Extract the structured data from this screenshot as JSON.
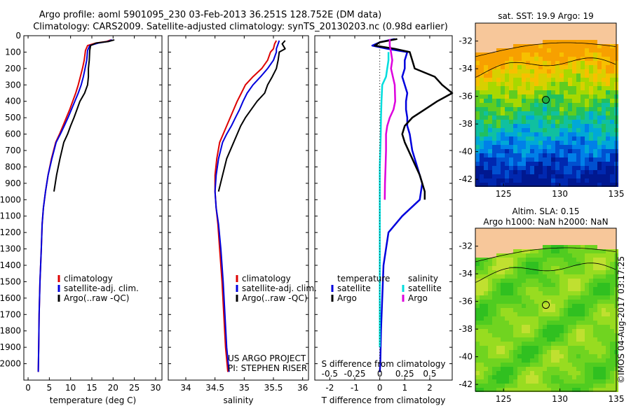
{
  "title": {
    "line1": "Argo profile: aoml 5901095_230 03-Feb-2013 36.251S 128.752E (DM data)",
    "line2": "Climatology: CARS2009. Satellite-adjusted climatology: synTS_20130203.nc (0.98d earlier)"
  },
  "colors": {
    "climatology": "#dd0000",
    "satellite": "#0000dd",
    "argo": "#000000",
    "salinity_satellite": "#00dddd",
    "salinity_argo": "#dd00dd",
    "land": "#f7c79a"
  },
  "credit": {
    "project": "US ARGO PROJECT",
    "pi": "PI: STEPHEN RISER"
  },
  "watermark": "©IMOS 04-Aug-2017 03:17:25",
  "chart_data": [
    {
      "id": "temperature",
      "type": "line",
      "xlabel": "temperature (deg C)",
      "ylabel": "",
      "xlim": [
        -1,
        31.5
      ],
      "ylim": [
        0,
        2100
      ],
      "y_reversed": true,
      "xticks": [
        0,
        5,
        10,
        15,
        20,
        25,
        30
      ],
      "yticks": [
        0,
        100,
        200,
        300,
        400,
        500,
        600,
        700,
        800,
        900,
        1000,
        1100,
        1200,
        1300,
        1400,
        1500,
        1600,
        1700,
        1800,
        1900,
        2000
      ],
      "legend": {
        "position": "bottom-left",
        "entries": [
          "climatology",
          "satellite-adj. clim.",
          "Argo(..raw -QC)"
        ]
      },
      "series": [
        {
          "name": "climatology",
          "color": "#dd0000",
          "x": [
            19.5,
            18.5,
            16,
            14,
            13.5,
            13.2,
            12.8,
            12.3,
            11.8,
            11.2,
            10.5,
            9.8,
            9,
            8.2,
            7.4,
            6.5,
            5.5,
            4.7,
            4.1,
            3.6,
            3.3,
            3.1,
            2.8,
            2.6,
            2.5,
            2.4
          ],
          "y": [
            25,
            35,
            45,
            60,
            90,
            150,
            200,
            250,
            300,
            350,
            400,
            450,
            500,
            550,
            600,
            650,
            750,
            850,
            950,
            1050,
            1150,
            1300,
            1500,
            1700,
            1900,
            2050
          ]
        },
        {
          "name": "satellite-adj. clim.",
          "color": "#0000dd",
          "x": [
            19.8,
            18.8,
            16.5,
            14.5,
            14,
            13.8,
            13.4,
            13,
            12.5,
            11.8,
            11,
            10.2,
            9.4,
            8.5,
            7.6,
            6.6,
            5.6,
            4.7,
            4.1,
            3.6,
            3.3,
            3.1,
            2.8,
            2.6,
            2.5,
            2.4
          ],
          "y": [
            25,
            35,
            45,
            60,
            90,
            150,
            200,
            250,
            300,
            350,
            400,
            450,
            500,
            550,
            600,
            650,
            750,
            850,
            950,
            1050,
            1150,
            1300,
            1500,
            1700,
            1900,
            2050
          ]
        },
        {
          "name": "Argo(..raw -QC)",
          "color": "#000000",
          "x": [
            20.3,
            19,
            16,
            14.7,
            14.5,
            14.4,
            14.2,
            14.2,
            14,
            13.3,
            12.2,
            11.5,
            10.8,
            10,
            9.3,
            8.4,
            7.5,
            6.7,
            6.1
          ],
          "y": [
            25,
            35,
            45,
            60,
            90,
            150,
            200,
            250,
            300,
            350,
            400,
            450,
            500,
            550,
            600,
            650,
            750,
            850,
            950
          ]
        }
      ]
    },
    {
      "id": "salinity",
      "type": "line",
      "xlabel": "salinity",
      "ylabel": "",
      "xlim": [
        33.7,
        36.1
      ],
      "ylim": [
        0,
        2100
      ],
      "y_reversed": true,
      "xticks": [
        34,
        34.5,
        35,
        35.5,
        36
      ],
      "legend": {
        "position": "bottom-right",
        "entries": [
          "climatology",
          "satellite-adj. clim.",
          "Argo(..raw -QC)"
        ]
      },
      "series": [
        {
          "name": "climatology",
          "color": "#dd0000",
          "x": [
            35.55,
            35.52,
            35.5,
            35.45,
            35.4,
            35.3,
            35.15,
            35.02,
            34.95,
            34.88,
            34.82,
            34.76,
            34.7,
            34.64,
            34.58,
            34.53,
            34.5,
            34.5,
            34.52,
            34.55,
            34.58,
            34.62,
            34.65,
            34.68,
            34.72
          ],
          "y": [
            30,
            50,
            80,
            100,
            150,
            200,
            250,
            300,
            350,
            400,
            450,
            500,
            550,
            600,
            650,
            750,
            850,
            950,
            1050,
            1150,
            1300,
            1500,
            1700,
            1900,
            2050
          ]
        },
        {
          "name": "satellite-adj. clim.",
          "color": "#0000dd",
          "x": [
            35.6,
            35.58,
            35.55,
            35.55,
            35.5,
            35.4,
            35.28,
            35.15,
            35.05,
            34.98,
            34.92,
            34.85,
            34.78,
            34.7,
            34.63,
            34.56,
            34.52,
            34.5,
            34.52,
            34.56,
            34.6,
            34.64,
            34.67,
            34.7,
            34.74
          ],
          "y": [
            30,
            50,
            80,
            100,
            150,
            200,
            250,
            300,
            350,
            400,
            450,
            500,
            550,
            600,
            650,
            750,
            850,
            950,
            1050,
            1150,
            1300,
            1500,
            1700,
            1900,
            2050
          ]
        },
        {
          "name": "Argo(..raw -QC)",
          "color": "#000000",
          "x": [
            35.7,
            35.65,
            35.7,
            35.6,
            35.58,
            35.55,
            35.48,
            35.4,
            35.35,
            35.22,
            35.12,
            35.02,
            34.94,
            34.88,
            34.82,
            34.7,
            34.63,
            34.56
          ],
          "y": [
            30,
            50,
            80,
            100,
            150,
            200,
            250,
            300,
            350,
            400,
            450,
            500,
            550,
            600,
            650,
            750,
            850,
            950
          ]
        }
      ]
    },
    {
      "id": "differences",
      "type": "line",
      "xlabel": "T difference from climatology",
      "xlabel_top": "S difference from climatology",
      "xlim": [
        -2.6,
        2.9
      ],
      "ylim": [
        0,
        2100
      ],
      "y_reversed": true,
      "xticks": [
        -2,
        -1,
        0,
        1,
        2
      ],
      "xticks_s": [
        -0.5,
        -0.25,
        0,
        0.25,
        0.5
      ],
      "legend": {
        "position": "center",
        "temperature_title": "temperature",
        "salinity_title": "salinity",
        "temperature_entries": [
          "satellite",
          "Argo"
        ],
        "salinity_entries": [
          "satellite",
          "Argo"
        ]
      },
      "series": [
        {
          "name": "temperature satellite",
          "color": "#0000dd",
          "x": [
            0.6,
            0,
            -0.3,
            0.3,
            1.1,
            1,
            1,
            0.9,
            1,
            1.1,
            1.05,
            1.05,
            1.1,
            1.1,
            1.2,
            1.3,
            1.5,
            1.7,
            1.6,
            0.9,
            0.35,
            0.15,
            0.1,
            0.05,
            0.02,
            0
          ],
          "y": [
            20,
            40,
            60,
            80,
            100,
            150,
            200,
            250,
            300,
            350,
            400,
            450,
            500,
            550,
            600,
            700,
            800,
            900,
            1000,
            1100,
            1200,
            1400,
            1600,
            1800,
            2000,
            2050
          ]
        },
        {
          "name": "temperature Argo",
          "color": "#000000",
          "x": [
            0.7,
            0,
            -0.2,
            0.6,
            1.2,
            1.3,
            1.4,
            2.2,
            2.5,
            2.9,
            2.3,
            1.8,
            1.3,
            1,
            0.9,
            1,
            1.3,
            1.6,
            1.8,
            1.8
          ],
          "y": [
            20,
            40,
            60,
            80,
            100,
            150,
            200,
            250,
            300,
            350,
            400,
            450,
            500,
            550,
            600,
            650,
            750,
            850,
            950,
            1000
          ]
        },
        {
          "name": "salinity satellite",
          "color": "#00dddd",
          "x": [
            0.35,
            0.35,
            0.3,
            0.25,
            0.1,
            0.07,
            0.05,
            0.04,
            0.02,
            0,
            0,
            0,
            0,
            0,
            0,
            0,
            0
          ],
          "y": [
            100,
            150,
            200,
            250,
            300,
            400,
            500,
            600,
            700,
            800,
            900,
            1000,
            1100,
            1300,
            1500,
            1700,
            1900
          ]
        },
        {
          "name": "salinity Argo",
          "color": "#dd00dd",
          "x": [
            0.4,
            0.4,
            0.45,
            0.5,
            0.45,
            0.6,
            0.62,
            0.55,
            0.4,
            0.3,
            0.25,
            0.25,
            0.23,
            0.21,
            0.2
          ],
          "y": [
            20,
            60,
            100,
            150,
            200,
            300,
            400,
            450,
            500,
            550,
            600,
            700,
            800,
            900,
            1000
          ]
        }
      ]
    },
    {
      "id": "sst-map",
      "type": "heatmap",
      "title": "sat. SST: 19.9 Argo: 19",
      "xlim": [
        122.5,
        135
      ],
      "ylim": [
        -42.5,
        -30.7
      ],
      "xticks": [
        125,
        130,
        135
      ],
      "yticks": [
        -32,
        -34,
        -36,
        -38,
        -40,
        -42
      ],
      "marker": {
        "lon": 128.752,
        "lat": -36.251
      }
    },
    {
      "id": "sla-map",
      "type": "heatmap",
      "title": "Altim. SLA: 0.15",
      "subtitle": "Argo h1000: NaN h2000: NaN",
      "xlim": [
        122.5,
        135
      ],
      "ylim": [
        -42.5,
        -30.7
      ],
      "xticks": [
        125,
        130,
        135
      ],
      "yticks": [
        -32,
        -34,
        -36,
        -38,
        -40,
        -42
      ],
      "marker": {
        "lon": 128.752,
        "lat": -36.251
      }
    }
  ]
}
